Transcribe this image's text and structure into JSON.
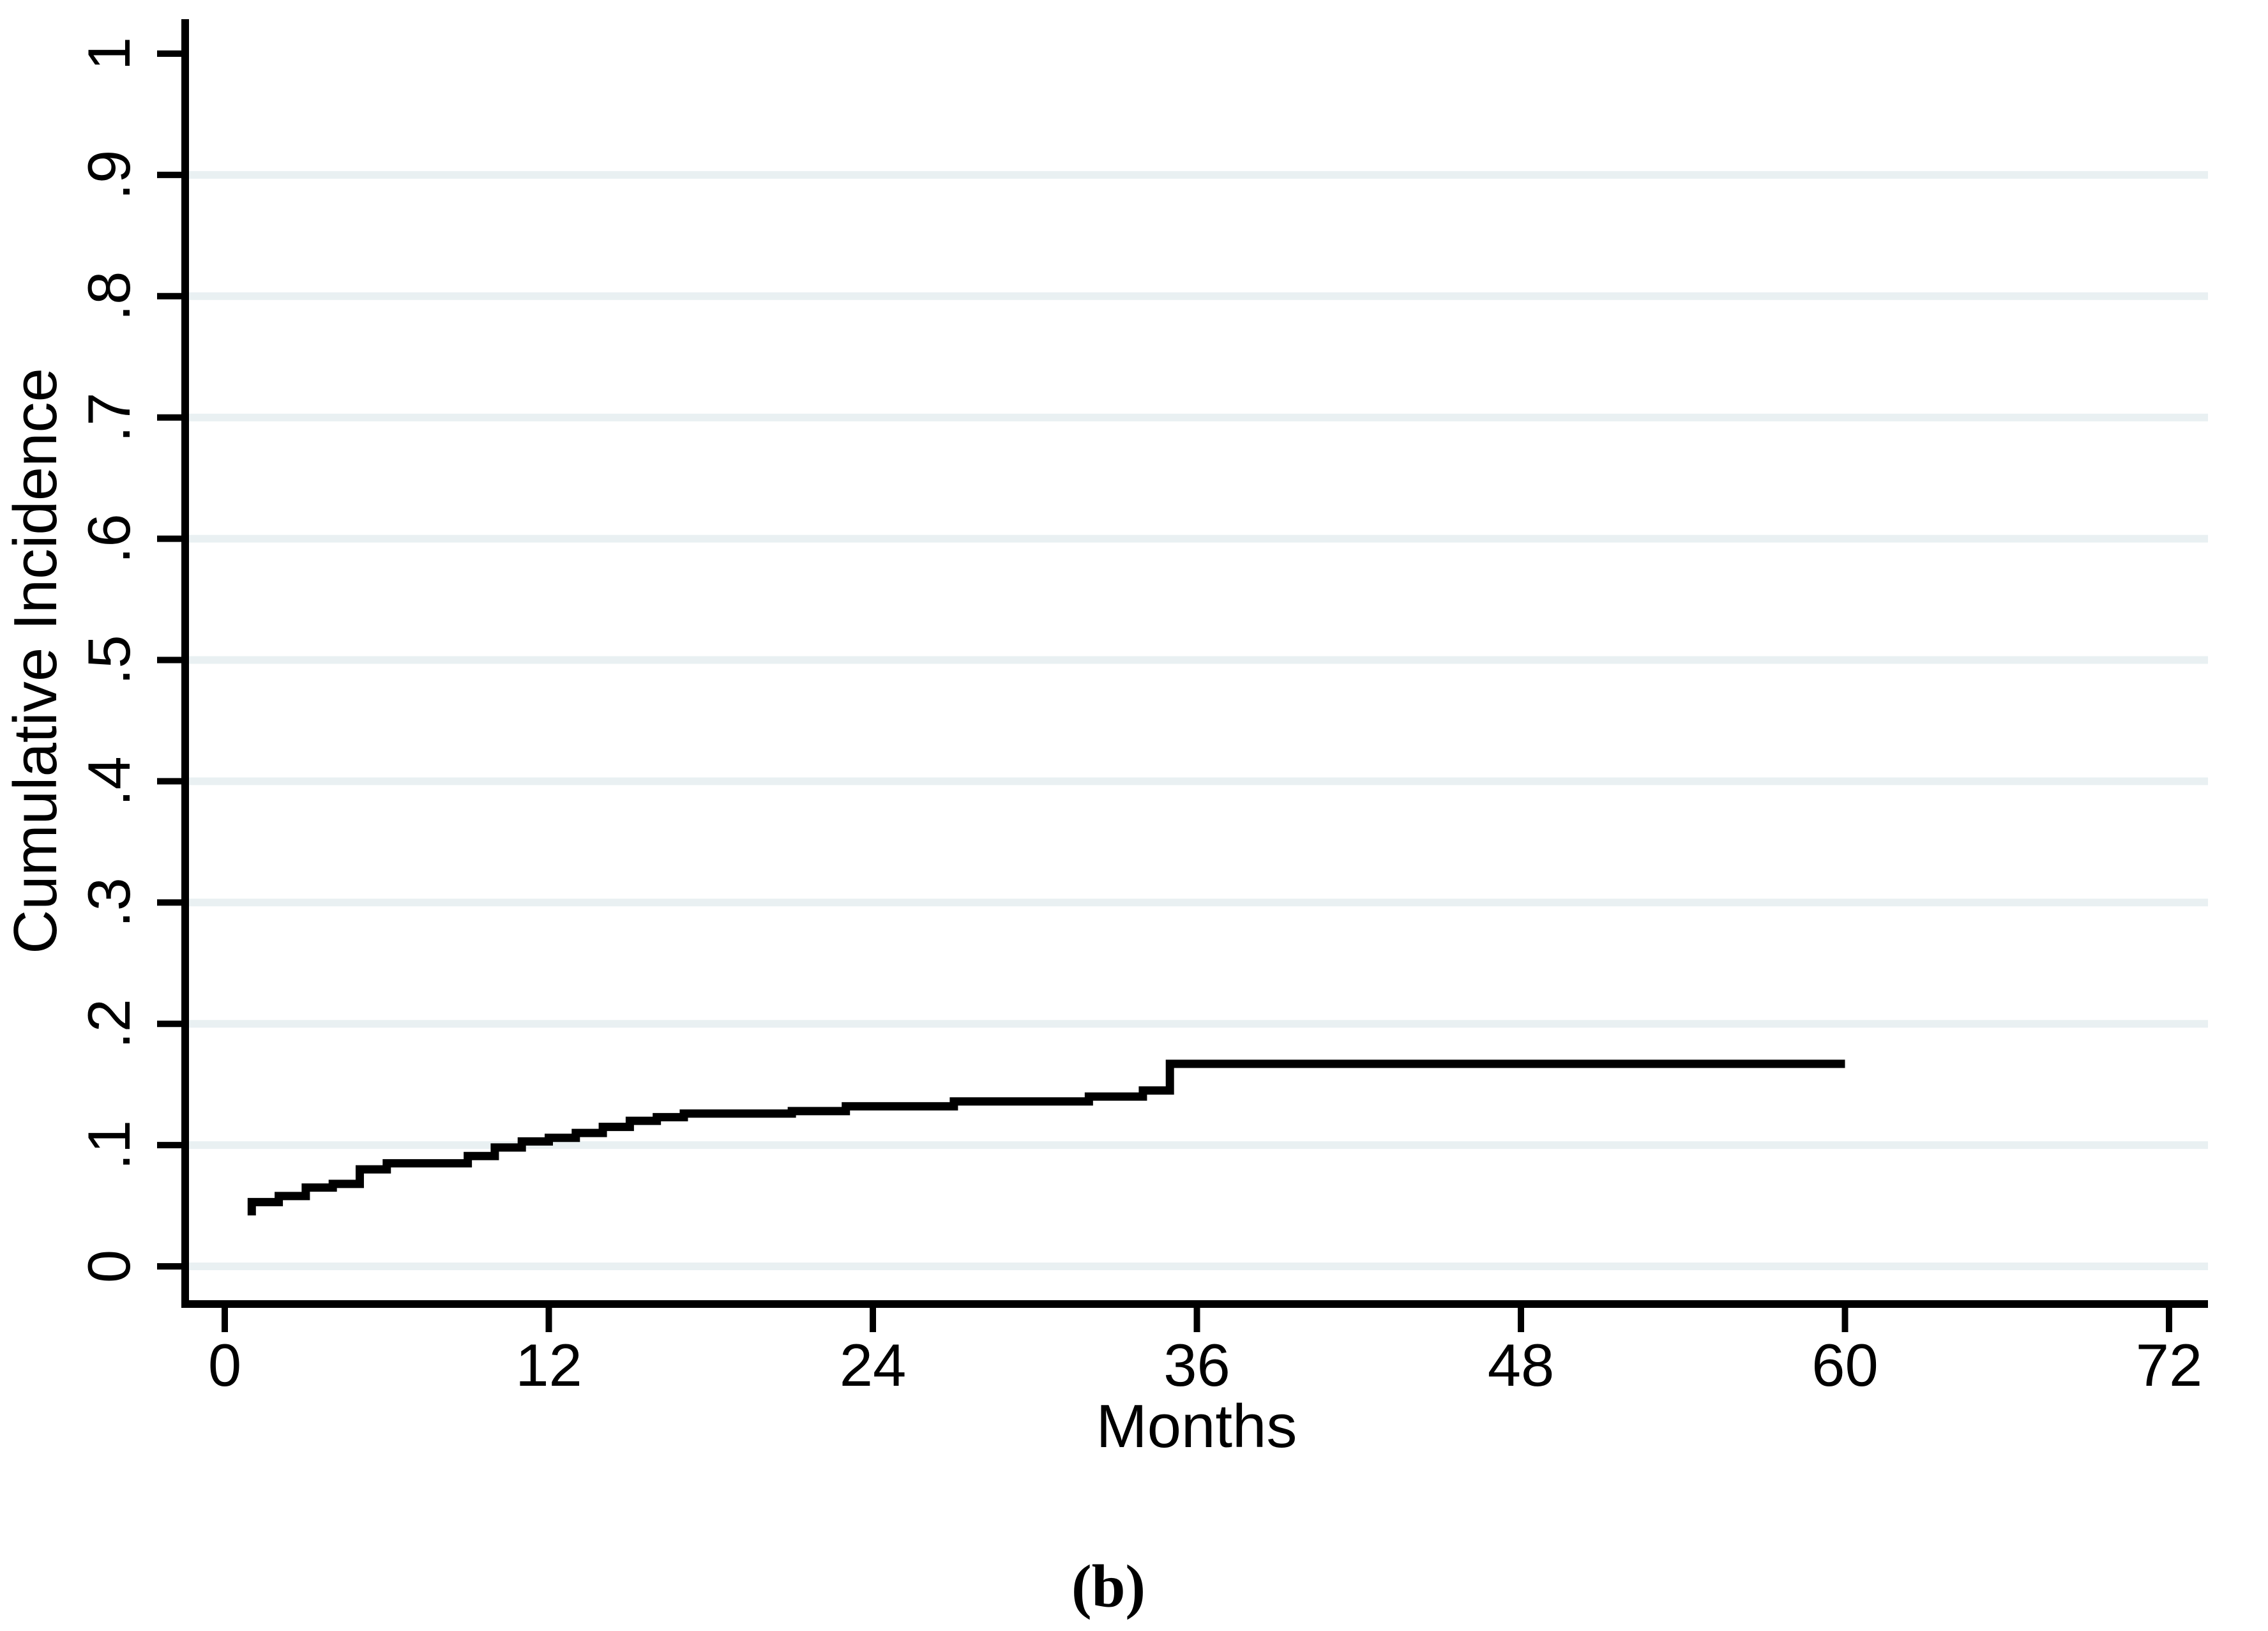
{
  "figure": {
    "caption": "(b)"
  },
  "chart_data": {
    "type": "line",
    "subtype": "step",
    "title": "",
    "xlabel": "Months",
    "ylabel": "Cumulative Incidence",
    "xlim": [
      0,
      72
    ],
    "ylim": [
      0,
      1
    ],
    "grid": "horizontal",
    "legend": "none",
    "line_color": "#000000",
    "axis_color": "#000000",
    "grid_color": "#e9f0f2",
    "x_ticks": {
      "values": [
        0,
        12,
        24,
        36,
        48,
        60,
        72
      ],
      "labels": [
        "0",
        "12",
        "24",
        "36",
        "48",
        "60",
        "72"
      ]
    },
    "y_ticks": {
      "values": [
        0,
        0.1,
        0.2,
        0.3,
        0.4,
        0.5,
        0.6,
        0.7,
        0.8,
        0.9,
        1
      ],
      "labels": [
        "0",
        ".1",
        ".2",
        ".3",
        ".4",
        ".5",
        ".6",
        ".7",
        ".8",
        ".9",
        "1"
      ]
    },
    "gridline_values": [
      0,
      0.1,
      0.2,
      0.3,
      0.4,
      0.5,
      0.6,
      0.7,
      0.8,
      0.9
    ],
    "series": [
      {
        "name": "Cumulative Incidence",
        "step_vertices": [
          [
            1,
            0.042
          ],
          [
            1,
            0.053
          ],
          [
            2,
            0.058
          ],
          [
            3,
            0.065
          ],
          [
            4,
            0.068
          ],
          [
            5,
            0.08
          ],
          [
            6,
            0.085
          ],
          [
            9,
            0.091
          ],
          [
            10,
            0.098
          ],
          [
            11,
            0.103
          ],
          [
            12,
            0.106
          ],
          [
            13,
            0.11
          ],
          [
            14,
            0.115
          ],
          [
            15,
            0.12
          ],
          [
            16,
            0.123
          ],
          [
            17,
            0.126
          ],
          [
            21,
            0.128
          ],
          [
            23,
            0.132
          ],
          [
            27,
            0.136
          ],
          [
            32,
            0.14
          ],
          [
            34,
            0.145
          ],
          [
            35,
            0.167
          ],
          [
            60,
            0.167
          ]
        ]
      }
    ]
  }
}
